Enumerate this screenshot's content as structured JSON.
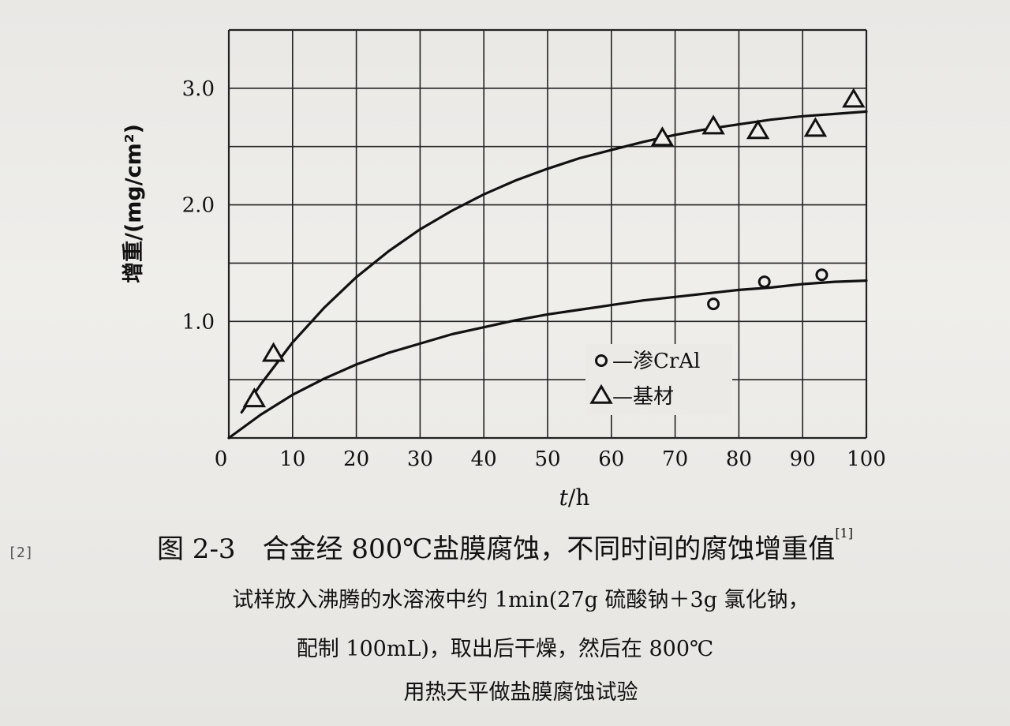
{
  "chart_data": {
    "type": "scatter",
    "xlabel_italic": "t",
    "xlabel_unit": "/h",
    "ylabel": "增重/(mg/cm²)",
    "xlim": [
      0,
      100
    ],
    "ylim": [
      0,
      3.5
    ],
    "x_ticks": [
      "0",
      "10",
      "20",
      "30",
      "40",
      "50",
      "60",
      "70",
      "80",
      "90",
      "100"
    ],
    "x_tick_values": [
      0,
      10,
      20,
      30,
      40,
      50,
      60,
      70,
      80,
      90,
      100
    ],
    "y_ticks": [
      "1.0",
      "2.0",
      "3.0"
    ],
    "y_tick_values": [
      1.0,
      2.0,
      3.0
    ],
    "grid": true,
    "legend_position": "middle-right",
    "series": [
      {
        "name": "渗CrAl",
        "legend_label": "—渗CrAl",
        "marker": "circle",
        "points": [
          [
            76,
            1.15
          ],
          [
            84,
            1.34
          ],
          [
            93,
            1.4
          ]
        ],
        "curve": [
          [
            0,
            0.0
          ],
          [
            5,
            0.2
          ],
          [
            10,
            0.37
          ],
          [
            15,
            0.51
          ],
          [
            20,
            0.63
          ],
          [
            25,
            0.73
          ],
          [
            30,
            0.81
          ],
          [
            35,
            0.89
          ],
          [
            40,
            0.95
          ],
          [
            45,
            1.01
          ],
          [
            50,
            1.06
          ],
          [
            55,
            1.1
          ],
          [
            60,
            1.14
          ],
          [
            65,
            1.18
          ],
          [
            70,
            1.21
          ],
          [
            75,
            1.24
          ],
          [
            80,
            1.27
          ],
          [
            85,
            1.29
          ],
          [
            90,
            1.32
          ],
          [
            95,
            1.34
          ],
          [
            100,
            1.35
          ]
        ]
      },
      {
        "name": "基材",
        "legend_label": "—基材",
        "marker": "triangle",
        "points": [
          [
            4,
            0.33
          ],
          [
            7,
            0.72
          ],
          [
            68,
            2.57
          ],
          [
            76,
            2.67
          ],
          [
            83,
            2.63
          ],
          [
            92,
            2.65
          ],
          [
            98,
            2.9
          ]
        ],
        "curve": [
          [
            2,
            0.22
          ],
          [
            5,
            0.46
          ],
          [
            10,
            0.82
          ],
          [
            15,
            1.12
          ],
          [
            20,
            1.38
          ],
          [
            25,
            1.6
          ],
          [
            30,
            1.79
          ],
          [
            35,
            1.95
          ],
          [
            40,
            2.09
          ],
          [
            45,
            2.21
          ],
          [
            50,
            2.31
          ],
          [
            55,
            2.4
          ],
          [
            60,
            2.47
          ],
          [
            65,
            2.54
          ],
          [
            70,
            2.6
          ],
          [
            75,
            2.65
          ],
          [
            80,
            2.69
          ],
          [
            85,
            2.73
          ],
          [
            90,
            2.76
          ],
          [
            95,
            2.78
          ],
          [
            100,
            2.8
          ]
        ]
      }
    ]
  },
  "caption": {
    "fig_no": "图 2-3",
    "title": "合金经 800℃盐膜腐蚀，不同时间的腐蚀增重值",
    "ref": "[1]",
    "desc_line1": "试样放入沸腾的水溶液中约 1min(27g 硫酸钠＋3g 氯化钠，",
    "desc_line2": "配制 100mL)，取出后干燥，然后在 800℃",
    "desc_line3": "用热天平做盐膜腐蚀试验"
  },
  "side_note": "[2]"
}
